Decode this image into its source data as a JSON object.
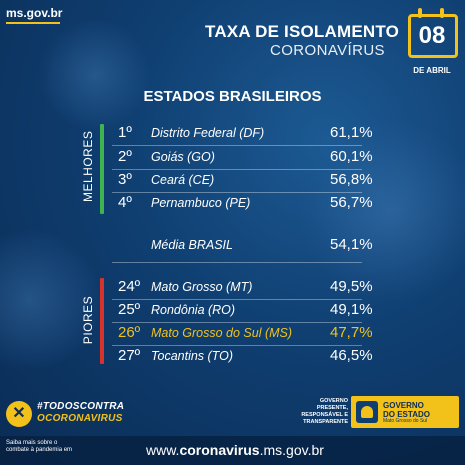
{
  "site": "ms.gov.br",
  "title_line1": "TAXA DE ISOLAMENTO",
  "title_line2": "CORONAVÍRUS",
  "date": {
    "day": "08",
    "month": "DE ABRIL"
  },
  "subtitle": "ESTADOS BRASILEIROS",
  "best_label": "MELHORES",
  "worst_label": "PIORES",
  "best": [
    {
      "rank": "1º",
      "name": "Distrito Federal (DF)",
      "pct": "61,1%"
    },
    {
      "rank": "2º",
      "name": "Goiás (GO)",
      "pct": "60,1%"
    },
    {
      "rank": "3º",
      "name": "Ceará (CE)",
      "pct": "56,8%"
    },
    {
      "rank": "4º",
      "name": "Pernambuco (PE)",
      "pct": "56,7%"
    }
  ],
  "average": {
    "name": "Média BRASIL",
    "pct": "54,1%"
  },
  "worst": [
    {
      "rank": "24º",
      "name": "Mato Grosso (MT)",
      "pct": "49,5%"
    },
    {
      "rank": "25º",
      "name": "Rondônia (RO)",
      "pct": "49,1%"
    },
    {
      "rank": "26º",
      "name": "Mato Grosso do Sul (MS)",
      "pct": "47,7%"
    },
    {
      "rank": "27º",
      "name": "Tocantins (TO)",
      "pct": "46,5%"
    }
  ],
  "campaign": {
    "line1": "#TODOSCONTRA",
    "line2": "OCORONAVIRUS"
  },
  "gov_tagline": "GOVERNO PRESENTE, RESPONSÁVEL E TRANSPARENTE",
  "gov_logo": {
    "line1": "GOVERNO",
    "line2": "DO ESTADO",
    "line3": "Mato Grosso do Sul"
  },
  "footer": {
    "left": "Saiba mais sobre o combate à pandemia em",
    "url_prefix": "www.",
    "url_bold": "coronavirus",
    "url_suffix": ".ms.gov.br"
  },
  "colors": {
    "accent": "#f2c21b",
    "best_bar": "#3fb34f",
    "worst_bar": "#d6332c",
    "bg": "#0f3e70"
  }
}
